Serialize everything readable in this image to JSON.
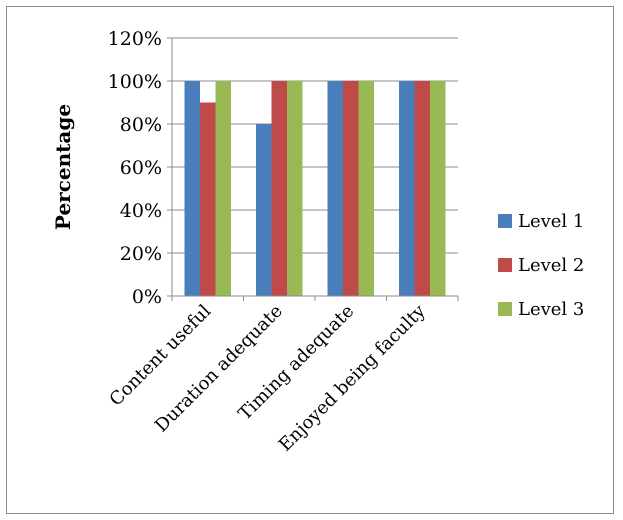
{
  "chart_data": {
    "type": "bar",
    "title": "",
    "xlabel": "",
    "ylabel": "Percentage",
    "ylim": [
      0,
      120
    ],
    "yticks": [
      "0%",
      "20%",
      "40%",
      "60%",
      "80%",
      "100%",
      "120%"
    ],
    "categories": [
      "Content useful",
      "Duration adequate",
      "Timing adequate",
      "Enjoyed being faculty"
    ],
    "series": [
      {
        "name": "Level 1",
        "color": "#4a7ebb",
        "values": [
          100,
          80,
          100,
          100
        ]
      },
      {
        "name": "Level 2",
        "color": "#be4b48",
        "values": [
          90,
          100,
          100,
          100
        ]
      },
      {
        "name": "Level 3",
        "color": "#98b954",
        "values": [
          100,
          100,
          100,
          100
        ]
      }
    ],
    "grid": true,
    "legend": "right"
  }
}
